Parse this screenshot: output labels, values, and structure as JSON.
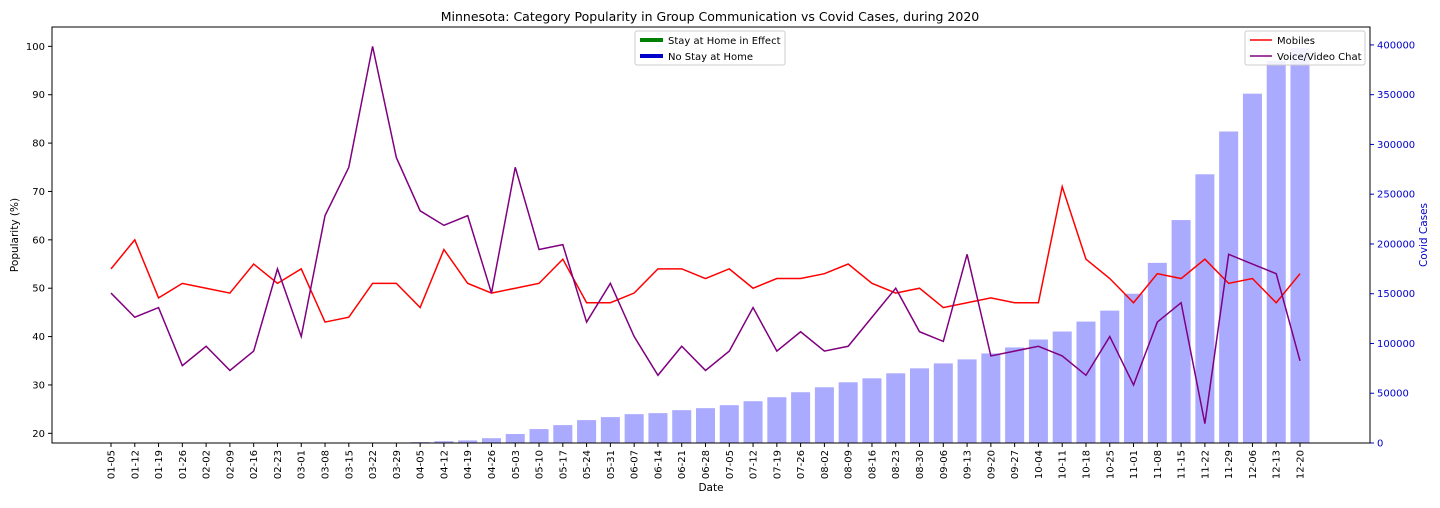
{
  "chart_data": {
    "type": "bar+line",
    "title": "Minnesota: Category Popularity in Group Communication vs Covid Cases, during 2020",
    "xlabel": "Date",
    "ylabel": "Popularity (%)",
    "y2label": "Covid Cases",
    "ylim": [
      18,
      104
    ],
    "y2lim": [
      0,
      418000
    ],
    "yticks": [
      20,
      30,
      40,
      50,
      60,
      70,
      80,
      90,
      100
    ],
    "y2ticks": [
      0,
      50000,
      100000,
      150000,
      200000,
      250000,
      300000,
      350000,
      400000
    ],
    "grid": false,
    "categories": [
      "01-05",
      "01-12",
      "01-19",
      "01-26",
      "02-02",
      "02-09",
      "02-16",
      "02-23",
      "03-01",
      "03-08",
      "03-15",
      "03-22",
      "03-29",
      "04-05",
      "04-12",
      "04-19",
      "04-26",
      "05-03",
      "05-10",
      "05-17",
      "05-24",
      "05-31",
      "06-07",
      "06-14",
      "06-21",
      "06-28",
      "07-05",
      "07-12",
      "07-19",
      "07-26",
      "08-02",
      "08-09",
      "08-16",
      "08-23",
      "08-30",
      "09-06",
      "09-13",
      "09-20",
      "09-27",
      "10-04",
      "10-11",
      "10-18",
      "10-25",
      "11-01",
      "11-08",
      "11-15",
      "11-22",
      "11-29",
      "12-06",
      "12-13",
      "12-20"
    ],
    "series": [
      {
        "name": "Mobiles",
        "kind": "line",
        "axis": "left",
        "color": "#ff0000",
        "values": [
          54,
          60,
          48,
          51,
          50,
          49,
          55,
          51,
          54,
          43,
          44,
          51,
          51,
          46,
          58,
          51,
          49,
          50,
          51,
          56,
          47,
          47,
          49,
          54,
          54,
          52,
          54,
          50,
          52,
          52,
          53,
          55,
          51,
          49,
          50,
          46,
          47,
          48,
          47,
          47,
          71,
          56,
          52,
          47,
          53,
          52,
          56,
          51,
          52,
          47,
          53
        ]
      },
      {
        "name": "Voice/Video Chat",
        "kind": "line",
        "axis": "left",
        "color": "#800080",
        "values": [
          49,
          44,
          46,
          34,
          38,
          33,
          37,
          54,
          40,
          65,
          75,
          100,
          77,
          66,
          63,
          65,
          49,
          75,
          58,
          59,
          43,
          51,
          40,
          32,
          38,
          33,
          37,
          46,
          37,
          41,
          37,
          38,
          44,
          50,
          41,
          39,
          57,
          36,
          37,
          38,
          36,
          32,
          40,
          30,
          43,
          47,
          22,
          57,
          55,
          53,
          35
        ]
      },
      {
        "name": "Covid Cases",
        "kind": "bar",
        "axis": "right",
        "color": "#aaaaff",
        "values": [
          0,
          0,
          0,
          0,
          0,
          0,
          0,
          0,
          0,
          0,
          0,
          0,
          500,
          900,
          1800,
          2600,
          4800,
          9000,
          14000,
          18000,
          23000,
          26000,
          29000,
          30000,
          33000,
          35000,
          38000,
          42000,
          46000,
          51000,
          56000,
          61000,
          65000,
          70000,
          75000,
          80000,
          84000,
          90000,
          96000,
          104000,
          112000,
          122000,
          133000,
          150000,
          181000,
          224000,
          270000,
          313000,
          351000,
          384000,
          397000
        ]
      }
    ],
    "legends": [
      {
        "placement": "top-center",
        "entries": [
          {
            "label": "Stay at Home in Effect",
            "color": "#008000"
          },
          {
            "label": "No Stay at Home",
            "color": "#0000cc"
          }
        ]
      },
      {
        "placement": "top-right",
        "entries": [
          {
            "label": "Mobiles",
            "color": "#ff0000"
          },
          {
            "label": "Voice/Video Chat",
            "color": "#800080"
          }
        ]
      }
    ],
    "right_axis_color": "#0000cc"
  }
}
